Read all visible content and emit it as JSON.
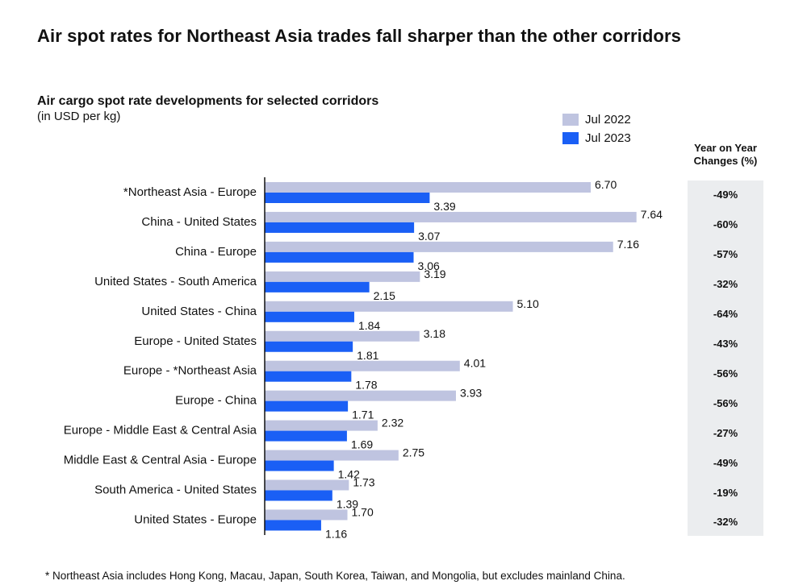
{
  "headline": "Air spot rates for Northeast Asia trades fall sharper than the other corridors",
  "yoy_header_line1": "Year on Year",
  "yoy_header_line2": "Changes (%)",
  "footnote": "* Northeast Asia includes Hong Kong, Macau, Japan, South Korea, Taiwan, and Mongolia, but excludes mainland China.",
  "colors": {
    "jul2022": "#bfc4e0",
    "jul2023": "#1a5ff5",
    "yoy_panel": "#ebedef"
  },
  "chart_data": {
    "type": "bar",
    "orientation": "horizontal",
    "title": "Air cargo spot rate developments for selected corridors",
    "unit": "(in USD per kg)",
    "legend_position": "top-right",
    "grid": false,
    "xlim": [
      0,
      8.3
    ],
    "categories": [
      "*Northeast Asia - Europe",
      "China - United States",
      "China - Europe",
      "United States - South America",
      "United States - China",
      "Europe - United States",
      "Europe - *Northeast Asia",
      "Europe - China",
      "Europe - Middle East & Central Asia",
      "Middle East & Central Asia - Europe",
      "South America - United States",
      "United States - Europe"
    ],
    "series": [
      {
        "name": "Jul 2022",
        "values": [
          6.7,
          7.64,
          7.16,
          3.19,
          5.1,
          3.18,
          4.01,
          3.93,
          2.32,
          2.75,
          1.73,
          1.7
        ]
      },
      {
        "name": "Jul 2023",
        "values": [
          3.39,
          3.07,
          3.06,
          2.15,
          1.84,
          1.81,
          1.78,
          1.71,
          1.69,
          1.42,
          1.39,
          1.16
        ]
      }
    ],
    "yoy_changes": [
      "-49%",
      "-60%",
      "-57%",
      "-32%",
      "-64%",
      "-43%",
      "-56%",
      "-56%",
      "-27%",
      "-49%",
      "-19%",
      "-32%"
    ]
  }
}
